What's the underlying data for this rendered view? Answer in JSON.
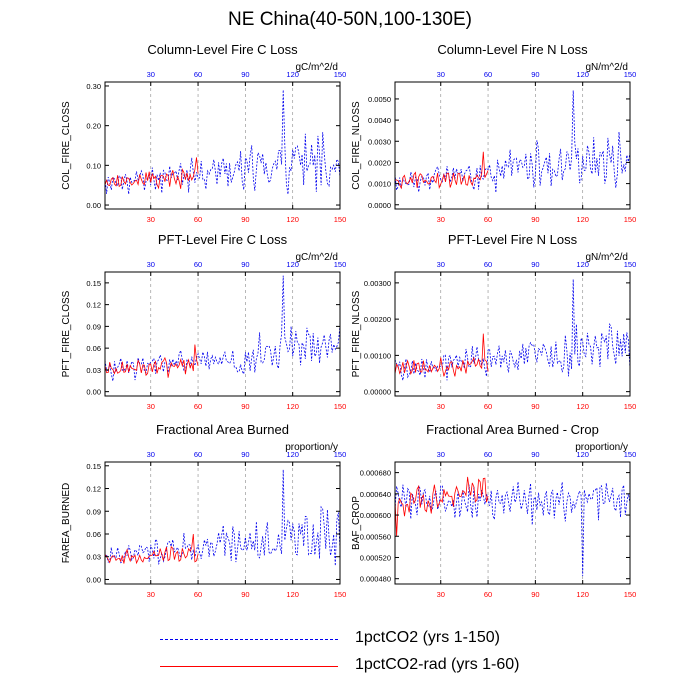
{
  "figure_title": "NE China(40-50N,100-130E)",
  "colors": {
    "series_a": "#0000ee",
    "series_b": "#ff0000",
    "bottom_ticks": "#ff0000",
    "top_ticks": "#0000ee",
    "frame": "#000000",
    "grid": "#999999"
  },
  "legend": [
    {
      "label": "1pctCO2 (yrs 1-150)",
      "color": "#0000ee",
      "style": "dashed"
    },
    {
      "label": "1pctCO2-rad (yrs 1-60)",
      "color": "#ff0000",
      "style": "solid"
    }
  ],
  "chart_data": [
    {
      "type": "line",
      "title": "Column-Level Fire C Loss",
      "ylabel": "COL_FIRE_CLOSS",
      "units": "gC/m^2/d",
      "xlim": [
        1,
        150
      ],
      "ylim": [
        -0.01,
        0.31
      ],
      "yticks": [
        "0.00",
        "0.10",
        "0.20",
        "0.30"
      ],
      "ytick_values": [
        0,
        0.1,
        0.2,
        0.3
      ],
      "xticks_bottom": [
        "30",
        "60",
        "90",
        "120",
        "150"
      ],
      "xticks_top": [
        "30",
        "60",
        "90",
        "120",
        "150"
      ],
      "series": [
        {
          "name": "1pctCO2 (yrs 1-150)",
          "n": 150,
          "base": 0.018,
          "amp": 0.045,
          "trend": 0.0004,
          "spike_at": 114,
          "spike": 0.29,
          "seed": 11
        },
        {
          "name": "1pctCO2-rad (yrs 1-60)",
          "n": 60,
          "base": 0.03,
          "amp": 0.035,
          "trend": 0.0002,
          "spike_at": 59,
          "spike": 0.12,
          "seed": 3
        }
      ]
    },
    {
      "type": "line",
      "title": "Column-Level Fire N Loss",
      "ylabel": "COL_FIRE_NLOSS",
      "units": "gN/m^2/d",
      "xlim": [
        1,
        150
      ],
      "ylim": [
        -0.0002,
        0.0058
      ],
      "yticks": [
        "0.0000",
        "0.0010",
        "0.0020",
        "0.0030",
        "0.0040",
        "0.0050"
      ],
      "ytick_values": [
        0,
        0.001,
        0.002,
        0.003,
        0.004,
        0.005
      ],
      "xticks_bottom": [
        "30",
        "60",
        "90",
        "120",
        "150"
      ],
      "xticks_top": [
        "30",
        "60",
        "90",
        "120",
        "150"
      ],
      "series": [
        {
          "name": "1pctCO2 (yrs 1-150)",
          "n": 150,
          "base": 0.00035,
          "amp": 0.0009,
          "trend": 8e-06,
          "spike_at": 114,
          "spike": 0.0054,
          "seed": 17
        },
        {
          "name": "1pctCO2-rad (yrs 1-60)",
          "n": 60,
          "base": 0.0005,
          "amp": 0.0007,
          "trend": 4e-06,
          "spike_at": 57,
          "spike": 0.0025,
          "seed": 5
        }
      ]
    },
    {
      "type": "line",
      "title": "PFT-Level Fire C Loss",
      "ylabel": "PFT_FIRE_CLOSS",
      "units": "gC/m^2/d",
      "xlim": [
        1,
        150
      ],
      "ylim": [
        -0.006,
        0.165
      ],
      "yticks": [
        "0.00",
        "0.03",
        "0.06",
        "0.09",
        "0.12",
        "0.15"
      ],
      "ytick_values": [
        0,
        0.03,
        0.06,
        0.09,
        0.12,
        0.15
      ],
      "xticks_bottom": [
        "30",
        "60",
        "90",
        "120",
        "150"
      ],
      "xticks_top": [
        "30",
        "60",
        "90",
        "120",
        "150"
      ],
      "series": [
        {
          "name": "1pctCO2 (yrs 1-150)",
          "n": 150,
          "base": 0.01,
          "amp": 0.025,
          "trend": 0.0002,
          "spike_at": 114,
          "spike": 0.16,
          "seed": 23
        },
        {
          "name": "1pctCO2-rad (yrs 1-60)",
          "n": 60,
          "base": 0.015,
          "amp": 0.02,
          "trend": 0.0001,
          "spike_at": 58,
          "spike": 0.065,
          "seed": 7
        }
      ]
    },
    {
      "type": "line",
      "title": "PFT-Level Fire N Loss",
      "ylabel": "PFT_FIRE_NLOSS",
      "units": "gN/m^2/d",
      "xlim": [
        1,
        150
      ],
      "ylim": [
        -0.00012,
        0.0033
      ],
      "yticks": [
        "0.00000",
        "0.00100",
        "0.00200",
        "0.00300"
      ],
      "ytick_values": [
        0,
        0.001,
        0.002,
        0.003
      ],
      "xticks_bottom": [
        "30",
        "60",
        "90",
        "120",
        "150"
      ],
      "xticks_top": [
        "30",
        "60",
        "90",
        "120",
        "150"
      ],
      "series": [
        {
          "name": "1pctCO2 (yrs 1-150)",
          "n": 150,
          "base": 0.0002,
          "amp": 0.0005,
          "trend": 4e-06,
          "spike_at": 114,
          "spike": 0.0031,
          "seed": 29
        },
        {
          "name": "1pctCO2-rad (yrs 1-60)",
          "n": 60,
          "base": 0.0003,
          "amp": 0.0004,
          "trend": 2e-06,
          "spike_at": 57,
          "spike": 0.0016,
          "seed": 9
        }
      ]
    },
    {
      "type": "line",
      "title": "Fractional Area Burned",
      "ylabel": "FAREA_BURNED",
      "units": "proportion/y",
      "xlim": [
        1,
        150
      ],
      "ylim": [
        -0.006,
        0.155
      ],
      "yticks": [
        "0.00",
        "0.03",
        "0.06",
        "0.09",
        "0.12",
        "0.15"
      ],
      "ytick_values": [
        0,
        0.03,
        0.06,
        0.09,
        0.12,
        0.15
      ],
      "xticks_bottom": [
        "30",
        "60",
        "90",
        "120",
        "150"
      ],
      "xticks_top": [
        "30",
        "60",
        "90",
        "120",
        "150"
      ],
      "series": [
        {
          "name": "1pctCO2 (yrs 1-150)",
          "n": 150,
          "base": 0.01,
          "amp": 0.025,
          "trend": 0.0002,
          "spike_at": 114,
          "spike": 0.145,
          "seed": 31
        },
        {
          "name": "1pctCO2-rad (yrs 1-60)",
          "n": 60,
          "base": 0.012,
          "amp": 0.02,
          "trend": 0.0001,
          "spike_at": 57,
          "spike": 0.06,
          "seed": 13
        }
      ]
    },
    {
      "type": "line",
      "title": "Fractional Area Burned - Crop",
      "ylabel": "BAF_CROP",
      "units": "proportion/y",
      "xlim": [
        1,
        150
      ],
      "ylim": [
        0.00047,
        0.0007
      ],
      "yticks": [
        "0.000480",
        "0.000520",
        "0.000560",
        "0.000600",
        "0.000640",
        "0.000680"
      ],
      "ytick_values": [
        0.00048,
        0.00052,
        0.00056,
        0.0006,
        0.00064,
        0.00068
      ],
      "xticks_bottom": [
        "30",
        "60",
        "90",
        "120",
        "150"
      ],
      "xticks_top": [
        "30",
        "60",
        "90",
        "120",
        "150"
      ],
      "series": [
        {
          "name": "1pctCO2 (yrs 1-150)",
          "n": 150,
          "base": 0.000615,
          "amp": 4.5e-05,
          "trend": 1e-07,
          "spike_at": 120,
          "spike": 0.000485,
          "seed": 37,
          "center": true
        },
        {
          "name": "1pctCO2-rad (yrs 1-60)",
          "n": 60,
          "base": 0.000615,
          "amp": 3.5e-05,
          "trend": 5e-07,
          "spike_at": 2,
          "spike": 0.00056,
          "seed": 19,
          "center": true
        }
      ]
    }
  ]
}
